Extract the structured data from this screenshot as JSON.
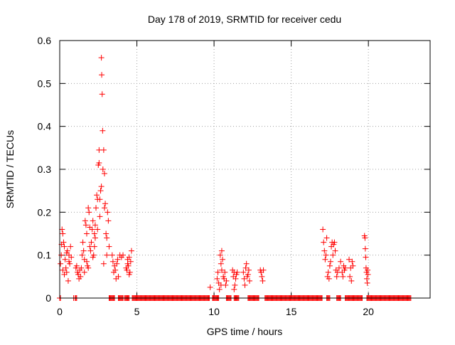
{
  "chart_data": {
    "type": "scatter",
    "title": "Day 178 of 2019, SRMTID for receiver cedu",
    "xlabel": "GPS time / hours",
    "ylabel": "SRMTID / TECUs",
    "xlim": [
      0,
      24
    ],
    "ylim": [
      0,
      0.6
    ],
    "xticks": [
      0,
      5,
      10,
      15,
      20
    ],
    "xtick_labels": [
      "0",
      "5",
      "10",
      "15",
      "20"
    ],
    "yticks": [
      0,
      0.1,
      0.2,
      0.3,
      0.4,
      0.5,
      0.6
    ],
    "ytick_labels": [
      "0",
      "0.1",
      "0.2",
      "0.3",
      "0.4",
      "0.5",
      "0.6"
    ],
    "grid": true,
    "marker": "+",
    "color": "#ff0000",
    "series": [
      {
        "name": "SRMTID",
        "points": [
          [
            0.05,
            0.08
          ],
          [
            0.1,
            0.1
          ],
          [
            0.15,
            0.16
          ],
          [
            0.2,
            0.15
          ],
          [
            0.25,
            0.13
          ],
          [
            0.3,
            0.12
          ],
          [
            0.35,
            0.09
          ],
          [
            0.4,
            0.07
          ],
          [
            0.45,
            0.06
          ],
          [
            0.5,
            0.11
          ],
          [
            0.55,
            0.04
          ],
          [
            0.6,
            0.1
          ],
          [
            0.65,
            0.08
          ],
          [
            0.7,
            0.12
          ],
          [
            0.75,
            0.095
          ],
          [
            0.2,
            0.065
          ],
          [
            0.3,
            0.055
          ],
          [
            0.45,
            0.105
          ],
          [
            0.6,
            0.085
          ],
          [
            0.12,
            0.125
          ],
          [
            1.05,
            0.07
          ],
          [
            1.1,
            0.075
          ],
          [
            1.15,
            0.06
          ],
          [
            1.2,
            0.055
          ],
          [
            1.25,
            0.045
          ],
          [
            1.3,
            0.065
          ],
          [
            1.35,
            0.05
          ],
          [
            1.4,
            0.07
          ],
          [
            1.45,
            0.1
          ],
          [
            1.5,
            0.13
          ],
          [
            1.55,
            0.11
          ],
          [
            1.6,
            0.09
          ],
          [
            1.65,
            0.18
          ],
          [
            1.7,
            0.17
          ],
          [
            1.75,
            0.15
          ],
          [
            1.8,
            0.075
          ],
          [
            1.85,
            0.21
          ],
          [
            1.9,
            0.2
          ],
          [
            1.95,
            0.12
          ],
          [
            2.0,
            0.11
          ],
          [
            2.05,
            0.13
          ],
          [
            2.1,
            0.16
          ],
          [
            2.15,
            0.095
          ],
          [
            2.2,
            0.1
          ],
          [
            2.25,
            0.15
          ],
          [
            2.3,
            0.17
          ],
          [
            2.35,
            0.21
          ],
          [
            2.4,
            0.24
          ],
          [
            2.45,
            0.23
          ],
          [
            2.5,
            0.31
          ],
          [
            2.55,
            0.345
          ],
          [
            2.6,
            0.23
          ],
          [
            2.65,
            0.25
          ],
          [
            2.7,
            0.56
          ],
          [
            2.72,
            0.52
          ],
          [
            2.75,
            0.475
          ],
          [
            2.78,
            0.39
          ],
          [
            2.8,
            0.3
          ],
          [
            2.85,
            0.345
          ],
          [
            2.9,
            0.29
          ],
          [
            2.95,
            0.22
          ],
          [
            3.0,
            0.15
          ],
          [
            3.05,
            0.14
          ],
          [
            3.1,
            0.2
          ],
          [
            3.15,
            0.18
          ],
          [
            3.2,
            0.12
          ],
          [
            2.85,
            0.08
          ],
          [
            3.05,
            0.1
          ],
          [
            2.6,
            0.19
          ],
          [
            2.45,
            0.16
          ],
          [
            2.3,
            0.14
          ],
          [
            2.15,
            0.18
          ],
          [
            1.95,
            0.165
          ],
          [
            1.75,
            0.085
          ],
          [
            2.55,
            0.315
          ],
          [
            2.9,
            0.21
          ],
          [
            2.7,
            0.26
          ],
          [
            1.6,
            0.06
          ],
          [
            1.85,
            0.07
          ],
          [
            2.25,
            0.12
          ],
          [
            3.4,
            0.1
          ],
          [
            3.45,
            0.085
          ],
          [
            3.5,
            0.06
          ],
          [
            3.55,
            0.075
          ],
          [
            3.6,
            0.065
          ],
          [
            3.65,
            0.045
          ],
          [
            3.7,
            0.08
          ],
          [
            3.75,
            0.09
          ],
          [
            3.8,
            0.05
          ],
          [
            3.9,
            0.1
          ],
          [
            4.0,
            0.095
          ],
          [
            4.1,
            0.1
          ],
          [
            4.3,
            0.07
          ],
          [
            4.35,
            0.065
          ],
          [
            4.4,
            0.08
          ],
          [
            4.45,
            0.075
          ],
          [
            4.5,
            0.095
          ],
          [
            4.55,
            0.06
          ],
          [
            4.6,
            0.085
          ],
          [
            4.65,
            0.11
          ],
          [
            4.5,
            0.055
          ],
          [
            4.4,
            0.09
          ],
          [
            9.75,
            0.025
          ],
          [
            10.2,
            0.045
          ],
          [
            10.25,
            0.06
          ],
          [
            10.3,
            0.035
          ],
          [
            10.35,
            0.02
          ],
          [
            10.4,
            0.1
          ],
          [
            10.45,
            0.08
          ],
          [
            10.5,
            0.065
          ],
          [
            10.55,
            0.09
          ],
          [
            10.6,
            0.05
          ],
          [
            10.65,
            0.045
          ],
          [
            10.7,
            0.06
          ],
          [
            10.75,
            0.03
          ],
          [
            10.8,
            0.04
          ],
          [
            10.5,
            0.11
          ],
          [
            10.45,
            0.03
          ],
          [
            11.2,
            0.065
          ],
          [
            11.25,
            0.05
          ],
          [
            11.3,
            0.06
          ],
          [
            11.35,
            0.03
          ],
          [
            11.4,
            0.045
          ],
          [
            11.45,
            0.055
          ],
          [
            11.5,
            0.06
          ],
          [
            11.3,
            0.02
          ],
          [
            11.9,
            0.06
          ],
          [
            11.95,
            0.045
          ],
          [
            12.0,
            0.03
          ],
          [
            12.05,
            0.07
          ],
          [
            12.1,
            0.08
          ],
          [
            12.15,
            0.05
          ],
          [
            12.2,
            0.055
          ],
          [
            12.25,
            0.065
          ],
          [
            12.3,
            0.04
          ],
          [
            13.0,
            0.065
          ],
          [
            13.05,
            0.06
          ],
          [
            13.1,
            0.05
          ],
          [
            13.15,
            0.04
          ],
          [
            13.2,
            0.065
          ],
          [
            17.05,
            0.16
          ],
          [
            17.1,
            0.13
          ],
          [
            17.15,
            0.11
          ],
          [
            17.2,
            0.09
          ],
          [
            17.25,
            0.1
          ],
          [
            17.3,
            0.14
          ],
          [
            17.35,
            0.05
          ],
          [
            17.4,
            0.06
          ],
          [
            17.45,
            0.045
          ],
          [
            17.5,
            0.075
          ],
          [
            17.55,
            0.085
          ],
          [
            17.6,
            0.12
          ],
          [
            17.65,
            0.13
          ],
          [
            17.7,
            0.1
          ],
          [
            17.75,
            0.125
          ],
          [
            17.8,
            0.13
          ],
          [
            17.85,
            0.11
          ],
          [
            17.9,
            0.065
          ],
          [
            17.95,
            0.05
          ],
          [
            18.0,
            0.06
          ],
          [
            18.1,
            0.07
          ],
          [
            18.2,
            0.085
          ],
          [
            18.3,
            0.06
          ],
          [
            18.35,
            0.05
          ],
          [
            18.4,
            0.075
          ],
          [
            18.45,
            0.065
          ],
          [
            18.5,
            0.07
          ],
          [
            18.75,
            0.09
          ],
          [
            18.8,
            0.05
          ],
          [
            18.85,
            0.07
          ],
          [
            18.9,
            0.04
          ],
          [
            18.95,
            0.085
          ],
          [
            19.0,
            0.075
          ],
          [
            19.75,
            0.145
          ],
          [
            19.78,
            0.14
          ],
          [
            19.8,
            0.115
          ],
          [
            19.83,
            0.095
          ],
          [
            19.85,
            0.07
          ],
          [
            19.88,
            0.06
          ],
          [
            19.9,
            0.045
          ],
          [
            19.93,
            0.035
          ],
          [
            19.95,
            0.065
          ],
          [
            19.97,
            0.055
          ],
          [
            0.0,
            0
          ],
          [
            0.05,
            0
          ],
          [
            0.9,
            0
          ],
          [
            1.0,
            0
          ],
          [
            1.05,
            0
          ],
          [
            1.1,
            0
          ]
        ],
        "zero_ranges": [
          [
            3.2,
            3.55
          ],
          [
            3.8,
            4.1
          ],
          [
            4.2,
            4.5
          ],
          [
            4.7,
            9.7
          ],
          [
            9.9,
            10.3
          ],
          [
            10.8,
            11.1
          ],
          [
            11.3,
            11.6
          ],
          [
            12.2,
            12.9
          ],
          [
            13.3,
            17.0
          ],
          [
            17.3,
            17.5
          ],
          [
            17.95,
            18.2
          ],
          [
            18.5,
            19.6
          ],
          [
            19.9,
            22.75
          ]
        ]
      }
    ]
  }
}
